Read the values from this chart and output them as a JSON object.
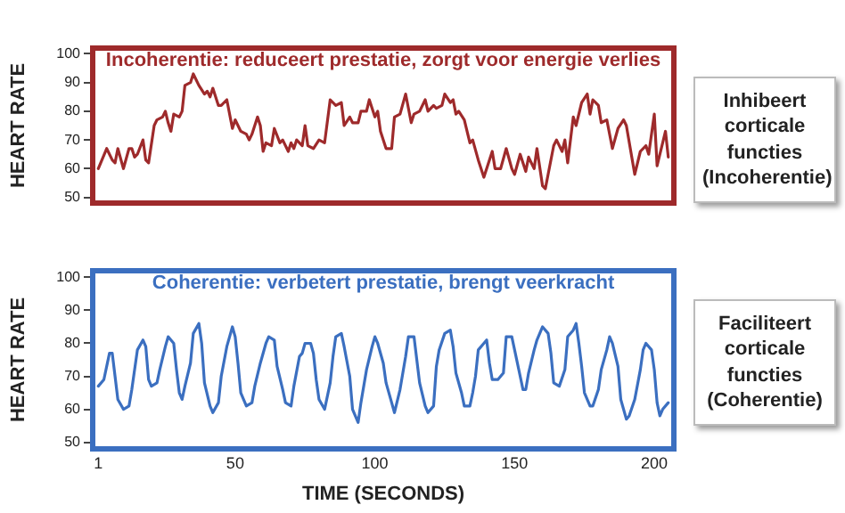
{
  "chart_data": [
    {
      "type": "line",
      "title": "Incoherentie: reduceert prestatie, zorgt voor energie verlies",
      "ylabel": "HEART RATE",
      "xlim": [
        -1,
        207
      ],
      "ylim": [
        48,
        102
      ],
      "yticks": [
        50,
        60,
        70,
        80,
        90,
        100
      ],
      "tick_labels": "y",
      "grid": false,
      "legend": false,
      "series": [
        {
          "color": "#9e2a2b",
          "x": [
            1,
            4,
            6,
            7,
            8,
            10,
            12,
            13,
            14,
            15,
            17,
            18,
            19,
            21,
            22,
            24,
            25,
            26,
            27,
            28,
            30,
            31,
            32,
            34,
            35,
            37,
            39,
            40,
            41,
            42,
            44,
            45,
            47,
            49,
            50,
            51,
            52,
            54,
            55,
            56,
            58,
            59,
            60,
            61,
            63,
            64,
            66,
            67,
            69,
            70,
            71,
            72,
            74,
            75,
            76,
            78,
            80,
            82,
            84,
            86,
            88,
            89,
            91,
            92,
            94,
            95,
            97,
            98,
            100,
            101,
            102,
            104,
            106,
            107,
            109,
            111,
            113,
            114,
            116,
            118,
            119,
            121,
            122,
            124,
            125,
            127,
            128,
            129,
            130,
            132,
            134,
            135,
            137,
            139,
            142,
            143,
            145,
            147,
            149,
            150,
            152,
            154,
            155,
            157,
            158,
            160,
            161,
            162,
            164,
            165,
            167,
            168,
            169,
            171,
            172,
            174,
            176,
            177,
            178,
            180,
            181,
            183,
            185,
            187,
            189,
            190,
            193,
            195,
            197,
            198,
            200,
            201,
            204,
            205
          ],
          "values": [
            60,
            67,
            63,
            62,
            67,
            60,
            67,
            67,
            64,
            65,
            70,
            63,
            62,
            75,
            77,
            78,
            80,
            76,
            73,
            79,
            78,
            80,
            89,
            90,
            93,
            89,
            86,
            87,
            85,
            88,
            82,
            82,
            84,
            74,
            77,
            75,
            73,
            72,
            70,
            72,
            78,
            75,
            66,
            69,
            68,
            74,
            69,
            70,
            66,
            69,
            67,
            70,
            68,
            75,
            68,
            67,
            70,
            69,
            84,
            82,
            83,
            75,
            78,
            76,
            76,
            80,
            80,
            84,
            78,
            80,
            73,
            67,
            67,
            78,
            79,
            86,
            76,
            79,
            80,
            84,
            80,
            82,
            81,
            82,
            86,
            83,
            84,
            79,
            80,
            77,
            69,
            70,
            63,
            57,
            66,
            60,
            60,
            67,
            60,
            58,
            65,
            59,
            64,
            60,
            67,
            54,
            53,
            58,
            68,
            70,
            66,
            70,
            62,
            78,
            75,
            83,
            86,
            79,
            84,
            82,
            76,
            77,
            67,
            74,
            77,
            75,
            58,
            66,
            68,
            65,
            79,
            61,
            73,
            64
          ]
        }
      ]
    },
    {
      "type": "other",
      "annotations": [
        "Inhibeert corticale functies (Incoherentie)"
      ]
    },
    {
      "type": "line",
      "title": "Coherentie: verbetert prestatie, brengt veerkracht",
      "xlabel": "TIME (SECONDS)",
      "ylabel": "HEART RATE",
      "xlim": [
        -1,
        207
      ],
      "xticks": [
        1,
        50,
        100,
        150,
        200
      ],
      "ylim": [
        48,
        102
      ],
      "yticks": [
        50,
        60,
        70,
        80,
        90,
        100
      ],
      "grid": false,
      "legend": false,
      "series": [
        {
          "color": "#3b6fc0",
          "x": [
            1,
            3,
            5,
            6,
            7,
            8,
            10,
            12,
            13,
            15,
            17,
            18,
            19,
            20,
            22,
            23,
            25,
            26,
            28,
            29,
            30,
            31,
            32,
            34,
            35,
            37,
            38,
            39,
            41,
            42,
            44,
            45,
            47,
            49,
            50,
            51,
            52,
            54,
            56,
            57,
            59,
            61,
            62,
            64,
            65,
            67,
            68,
            70,
            71,
            73,
            74,
            75,
            77,
            78,
            79,
            80,
            82,
            84,
            85,
            86,
            88,
            89,
            91,
            92,
            94,
            95,
            97,
            99,
            100,
            101,
            103,
            104,
            106,
            107,
            109,
            111,
            112,
            114,
            115,
            116,
            118,
            119,
            121,
            122,
            123,
            125,
            127,
            128,
            129,
            131,
            132,
            134,
            135,
            136,
            137,
            139,
            140,
            141,
            142,
            144,
            146,
            147,
            149,
            150,
            152,
            153,
            154,
            155,
            157,
            158,
            160,
            162,
            163,
            164,
            166,
            168,
            169,
            171,
            172,
            173,
            174,
            175,
            177,
            178,
            180,
            181,
            183,
            184,
            185,
            187,
            188,
            190,
            191,
            193,
            195,
            196,
            197,
            199,
            200,
            201,
            202,
            203,
            205
          ],
          "values": [
            67,
            69,
            77,
            77,
            70,
            63,
            60,
            61,
            66,
            78,
            81,
            79,
            69,
            67,
            68,
            72,
            79,
            82,
            80,
            72,
            65,
            63,
            67,
            74,
            83,
            86,
            80,
            68,
            61,
            59,
            62,
            70,
            79,
            85,
            82,
            74,
            65,
            61,
            62,
            67,
            74,
            80,
            82,
            81,
            73,
            66,
            62,
            61,
            67,
            76,
            77,
            80,
            80,
            77,
            69,
            63,
            60,
            68,
            76,
            82,
            83,
            79,
            70,
            60,
            56,
            62,
            72,
            79,
            82,
            80,
            74,
            68,
            62,
            59,
            66,
            76,
            82,
            82,
            75,
            68,
            61,
            59,
            61,
            73,
            78,
            83,
            84,
            79,
            71,
            65,
            61,
            61,
            65,
            70,
            78,
            80,
            81,
            74,
            69,
            69,
            71,
            82,
            82,
            78,
            70,
            66,
            66,
            71,
            78,
            81,
            85,
            83,
            77,
            68,
            67,
            72,
            82,
            84,
            86,
            80,
            73,
            65,
            61,
            61,
            66,
            72,
            78,
            82,
            80,
            73,
            63,
            57,
            58,
            63,
            72,
            78,
            80,
            78,
            72,
            62,
            58,
            60,
            62
          ]
        }
      ]
    },
    {
      "type": "other",
      "annotations": [
        "Faciliteert corticale functies (Coherentie)"
      ]
    }
  ]
}
